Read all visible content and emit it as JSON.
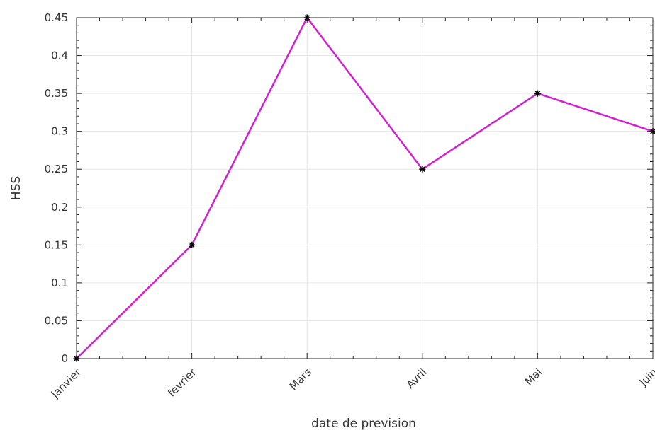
{
  "chart_data": {
    "type": "line",
    "categories": [
      "janvier",
      "fevrier",
      "Mars",
      "Avril",
      "Mai",
      "Juin"
    ],
    "series": [
      {
        "values": [
          0,
          0.15,
          0.45,
          0.25,
          0.35,
          0.3
        ]
      }
    ],
    "xlabel": "date de prevision",
    "ylabel": "HSS",
    "ylim": [
      0,
      0.45
    ],
    "yticks": [
      "0",
      "0.05",
      "0.1",
      "0.15",
      "0.2",
      "0.25",
      "0.3",
      "0.35",
      "0.4",
      "0.45"
    ],
    "grid": true,
    "line_color": "#d21fd2",
    "marker_color": "#000000",
    "marker": "asterisk"
  }
}
